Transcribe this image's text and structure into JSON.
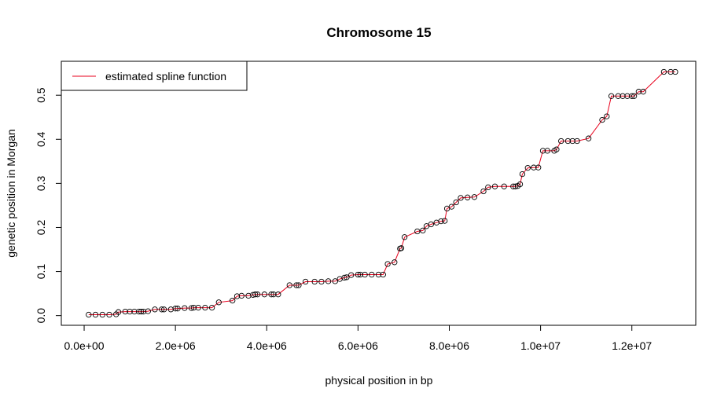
{
  "chart_data": {
    "type": "scatter",
    "title": "Chromosome 15",
    "xlabel": "physical position in bp",
    "ylabel": "genetic position in Morgan",
    "xlim": [
      -500000,
      13400000
    ],
    "ylim": [
      -0.022,
      0.577
    ],
    "x_ticks": [
      {
        "value": 0,
        "label": "0.0e+00"
      },
      {
        "value": 2000000,
        "label": "2.0e+06"
      },
      {
        "value": 4000000,
        "label": "4.0e+06"
      },
      {
        "value": 6000000,
        "label": "6.0e+06"
      },
      {
        "value": 8000000,
        "label": "8.0e+06"
      },
      {
        "value": 10000000,
        "label": "1.0e+07"
      },
      {
        "value": 12000000,
        "label": "1.2e+07"
      }
    ],
    "y_ticks": [
      {
        "value": 0.0,
        "label": "0.0"
      },
      {
        "value": 0.1,
        "label": "0.1"
      },
      {
        "value": 0.2,
        "label": "0.2"
      },
      {
        "value": 0.3,
        "label": "0.3"
      },
      {
        "value": 0.4,
        "label": "0.4"
      },
      {
        "value": 0.5,
        "label": "0.5"
      }
    ],
    "grid": false,
    "legend": {
      "position": "top-left",
      "entries": [
        {
          "label": "estimated spline function",
          "color": "#e8001c",
          "style": "line"
        }
      ]
    },
    "colors": {
      "points": "#000000",
      "line": "#e8001c"
    },
    "series": [
      {
        "style": "points+line",
        "x": [
          100000,
          250000,
          400000,
          550000,
          700000,
          750000,
          900000,
          1000000,
          1100000,
          1200000,
          1250000,
          1300000,
          1400000,
          1550000,
          1700000,
          1750000,
          1900000,
          2000000,
          2050000,
          2200000,
          2350000,
          2400000,
          2500000,
          2650000,
          2800000,
          2950000,
          3250000,
          3350000,
          3450000,
          3600000,
          3700000,
          3750000,
          3800000,
          3950000,
          4100000,
          4150000,
          4250000,
          4500000,
          4650000,
          4700000,
          4850000,
          5050000,
          5200000,
          5350000,
          5500000,
          5600000,
          5700000,
          5750000,
          5850000,
          6000000,
          6050000,
          6150000,
          6300000,
          6450000,
          6550000,
          6650000,
          6800000,
          6920000,
          6950000,
          7020000,
          7300000,
          7420000,
          7500000,
          7600000,
          7720000,
          7820000,
          7900000,
          7950000,
          8050000,
          8150000,
          8250000,
          8400000,
          8550000,
          8750000,
          8850000,
          9000000,
          9200000,
          9400000,
          9450000,
          9500000,
          9550000,
          9600000,
          9720000,
          9850000,
          9950000,
          10050000,
          10150000,
          10300000,
          10350000,
          10450000,
          10600000,
          10700000,
          10800000,
          11050000,
          11350000,
          11450000,
          11550000,
          11700000,
          11800000,
          11900000,
          12000000,
          12050000,
          12150000,
          12250000,
          12700000,
          12850000,
          12950000
        ],
        "y": [
          0.002,
          0.002,
          0.002,
          0.002,
          0.003,
          0.008,
          0.009,
          0.009,
          0.009,
          0.009,
          0.009,
          0.009,
          0.01,
          0.014,
          0.014,
          0.014,
          0.014,
          0.016,
          0.016,
          0.017,
          0.017,
          0.018,
          0.018,
          0.018,
          0.018,
          0.03,
          0.034,
          0.044,
          0.045,
          0.045,
          0.047,
          0.048,
          0.048,
          0.048,
          0.048,
          0.048,
          0.048,
          0.069,
          0.069,
          0.069,
          0.077,
          0.077,
          0.077,
          0.078,
          0.078,
          0.083,
          0.086,
          0.087,
          0.092,
          0.093,
          0.093,
          0.093,
          0.093,
          0.093,
          0.093,
          0.117,
          0.121,
          0.152,
          0.153,
          0.178,
          0.191,
          0.193,
          0.203,
          0.207,
          0.211,
          0.214,
          0.215,
          0.243,
          0.247,
          0.257,
          0.267,
          0.268,
          0.269,
          0.282,
          0.291,
          0.293,
          0.293,
          0.293,
          0.293,
          0.294,
          0.298,
          0.321,
          0.335,
          0.336,
          0.336,
          0.374,
          0.374,
          0.374,
          0.377,
          0.396,
          0.396,
          0.396,
          0.396,
          0.402,
          0.444,
          0.452,
          0.498,
          0.498,
          0.498,
          0.498,
          0.498,
          0.498,
          0.508,
          0.508,
          0.553,
          0.553,
          0.553
        ]
      }
    ]
  }
}
